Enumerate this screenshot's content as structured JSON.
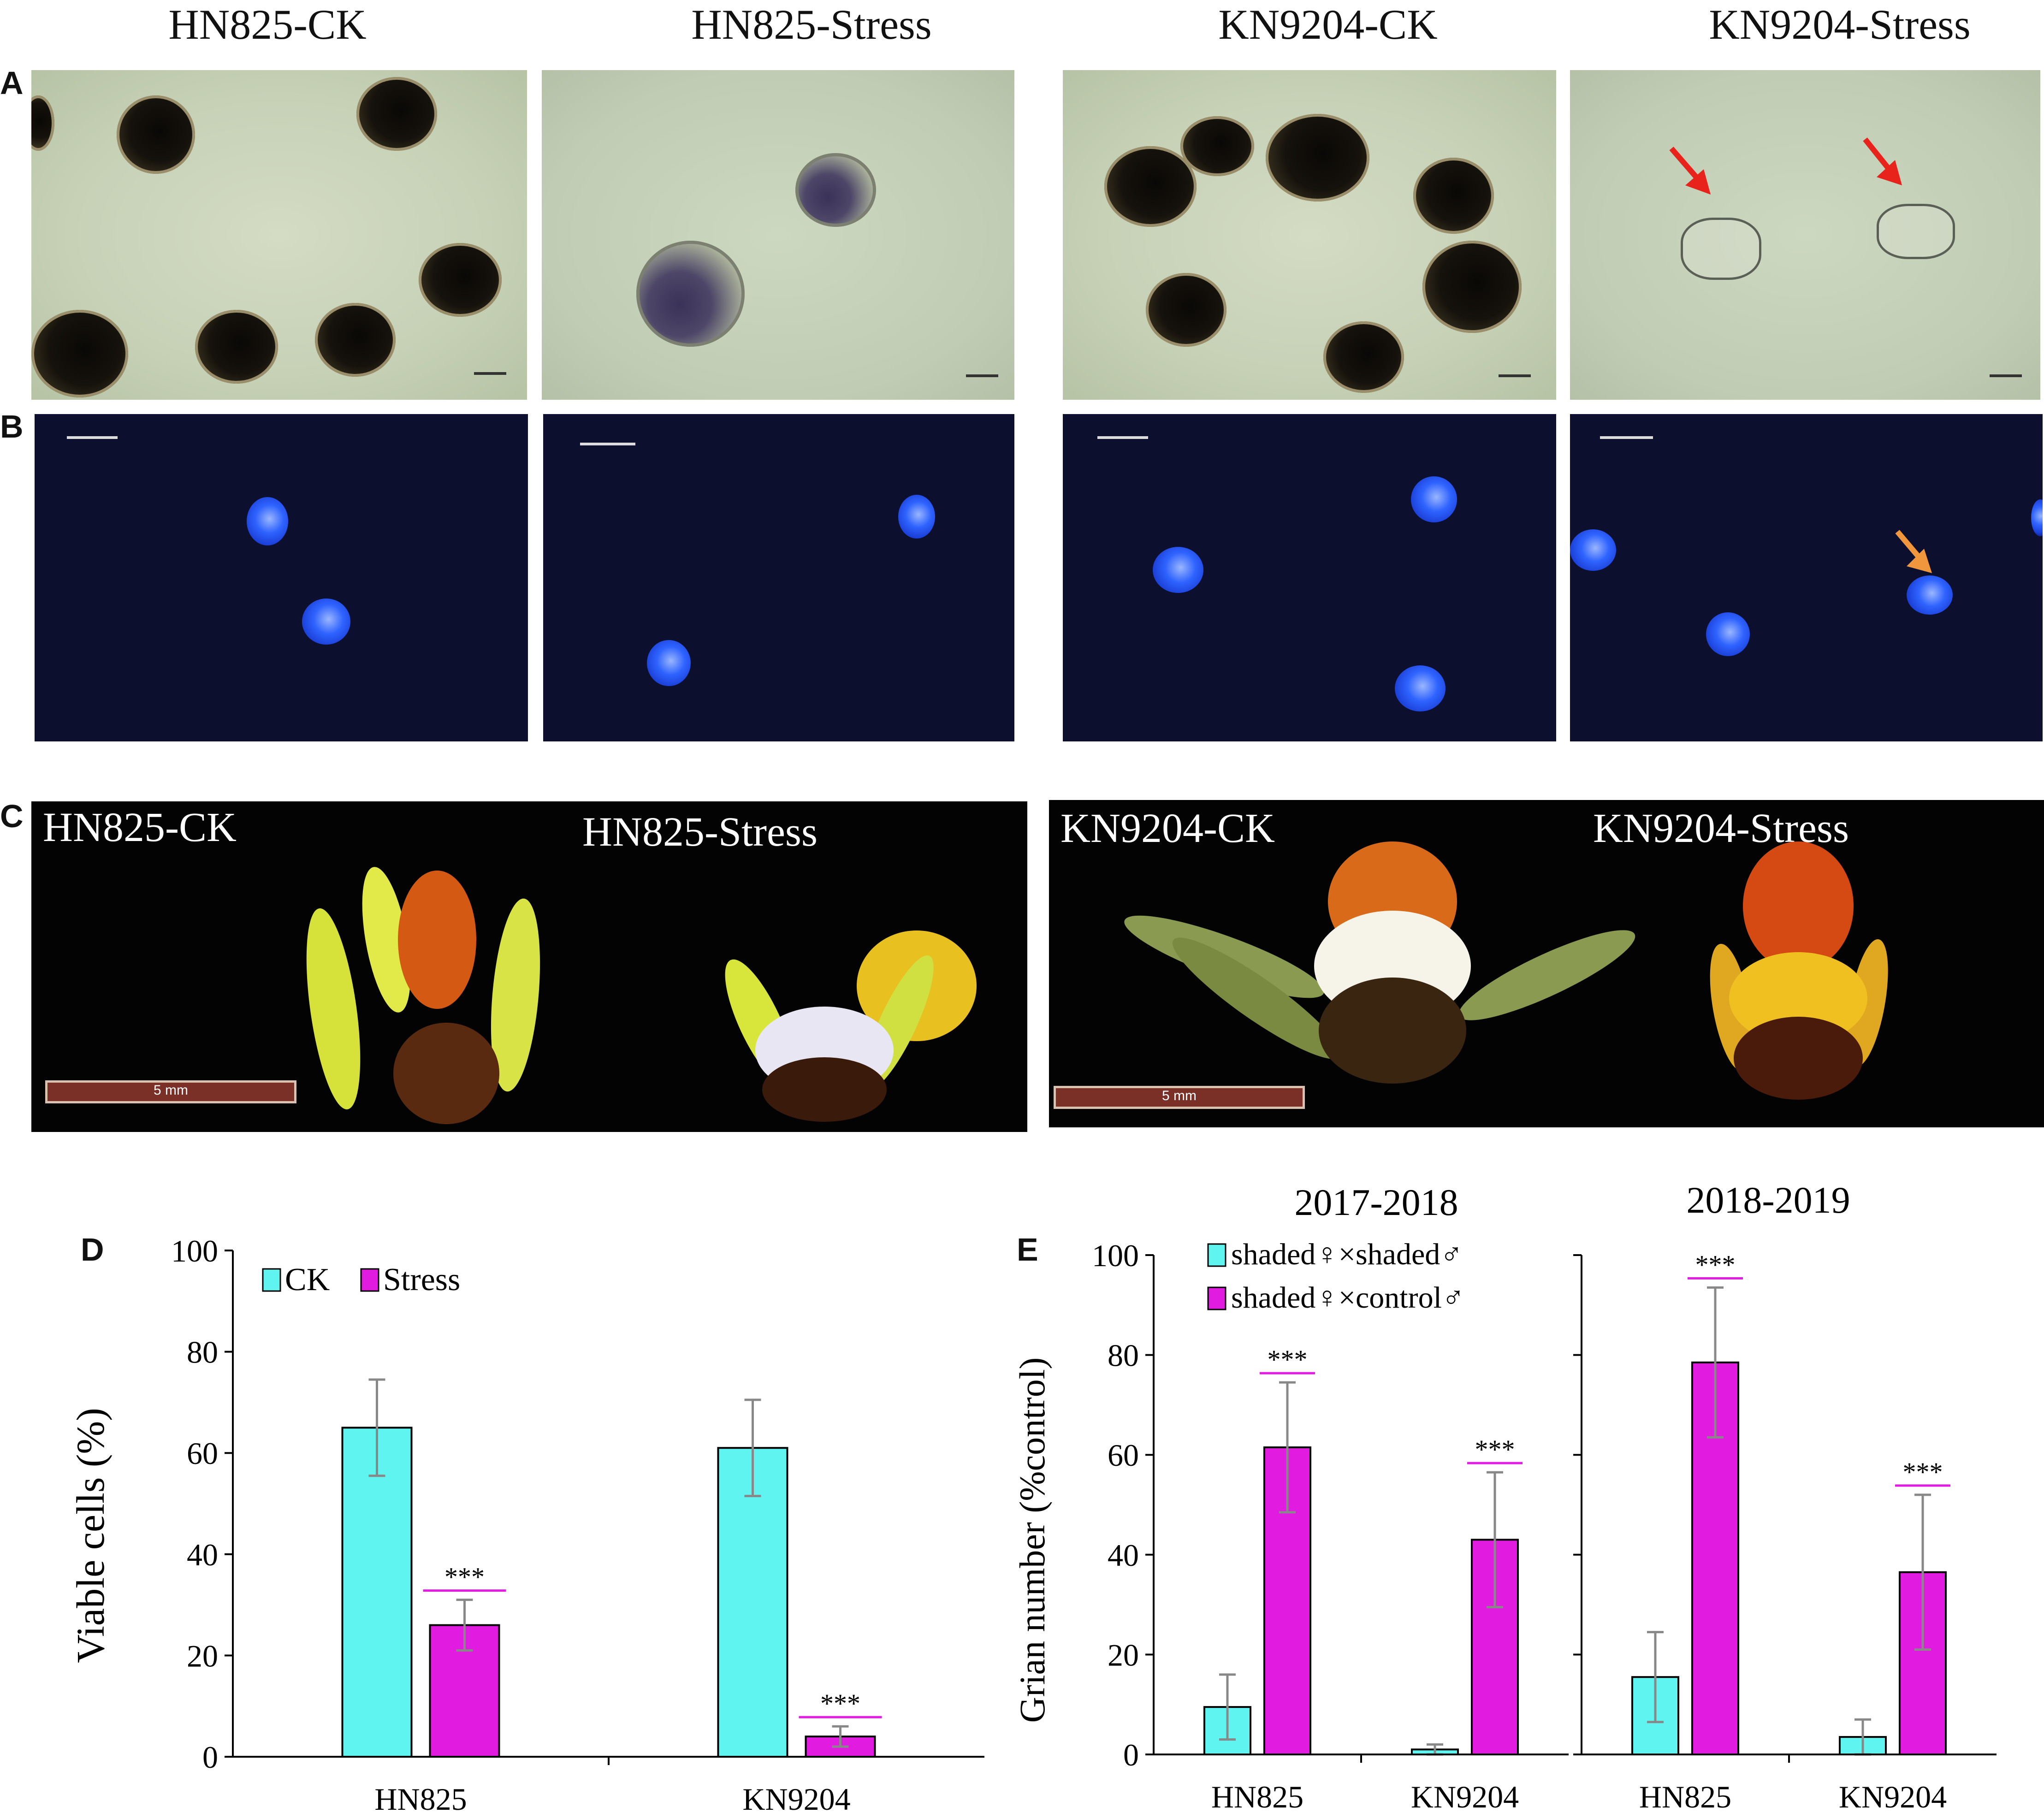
{
  "panel_labels": {
    "a": "A",
    "b": "B",
    "c": "C",
    "d": "D",
    "e": "E"
  },
  "column_titles": [
    "HN825-CK",
    "HN825-Stress",
    "KN9204-CK",
    "KN9204-Stress"
  ],
  "panel_c": {
    "labels": [
      "HN825-CK",
      "HN825-Stress",
      "KN9204-CK",
      "KN9204-Stress"
    ],
    "scale_bar": "5 mm"
  },
  "colors": {
    "ck": "#5ff4f0",
    "stress": "#e21be0",
    "sig_line": "#e21be0",
    "error": "#888888",
    "arrow_red": "#e8231b",
    "arrow_orange": "#f0963c"
  },
  "chart_data": [
    {
      "type": "bar",
      "panel": "D",
      "categories": [
        "HN825",
        "KN9204"
      ],
      "series": [
        {
          "name": "CK",
          "values": [
            65,
            61
          ],
          "error": [
            9.5,
            9.5
          ]
        },
        {
          "name": "Stress",
          "values": [
            26,
            4
          ],
          "error": [
            5,
            2
          ]
        }
      ],
      "title": "",
      "xlabel": "",
      "ylabel": "Viable cells (%)",
      "ylim": [
        0,
        100
      ],
      "yticks": [
        0,
        20,
        40,
        60,
        80,
        100
      ],
      "significance": [
        "***",
        "***"
      ],
      "legend": "top-left"
    },
    {
      "type": "bar",
      "panel": "E",
      "title": "2017-2018",
      "categories": [
        "HN825",
        "KN9204"
      ],
      "series": [
        {
          "name": "shaded♀×shaded♂",
          "values": [
            9.5,
            1
          ],
          "error": [
            6.5,
            1
          ]
        },
        {
          "name": "shaded♀×control♂",
          "values": [
            61.5,
            43
          ],
          "error": [
            13,
            13.5
          ]
        }
      ],
      "ylabel": "Grian number (%control)",
      "ylim": [
        0,
        100
      ],
      "yticks": [
        0,
        20,
        40,
        60,
        80,
        100
      ],
      "significance": [
        "***",
        "***"
      ],
      "legend": "top-left"
    },
    {
      "type": "bar",
      "panel": "E",
      "title": "2018-2019",
      "categories": [
        "HN825",
        "KN9204"
      ],
      "series": [
        {
          "name": "shaded♀×shaded♂",
          "values": [
            15.5,
            3.5
          ],
          "error": [
            9,
            3.5
          ]
        },
        {
          "name": "shaded♀×control♂",
          "values": [
            78.5,
            36.5
          ],
          "error": [
            15,
            15.5
          ]
        }
      ],
      "ylim": [
        0,
        100
      ],
      "significance": [
        "***",
        "***"
      ]
    }
  ]
}
